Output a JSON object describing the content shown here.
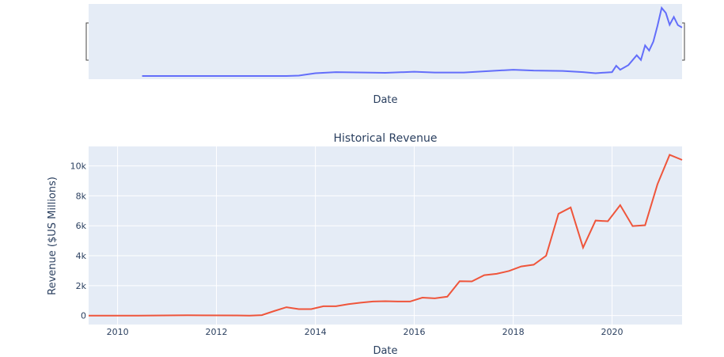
{
  "chart_data": [
    {
      "type": "line",
      "role": "range-slider-preview",
      "title": "",
      "xlabel": "Date",
      "ylabel": "",
      "x_range": [
        "2009-06-01",
        "2021-06-01"
      ],
      "colors": {
        "line": "#636efa",
        "background": "#e5ecf6"
      },
      "series": [
        {
          "points": [
            [
              "2010-07-01",
              0.2
            ],
            [
              "2011-06-01",
              0.2
            ],
            [
              "2012-06-01",
              0.2
            ],
            [
              "2013-06-01",
              0.2
            ],
            [
              "2013-09-01",
              0.3
            ],
            [
              "2014-01-01",
              0.9
            ],
            [
              "2014-06-01",
              1.2
            ],
            [
              "2015-01-01",
              1.1
            ],
            [
              "2015-06-01",
              1.0
            ],
            [
              "2016-01-01",
              1.3
            ],
            [
              "2016-06-01",
              1.1
            ],
            [
              "2017-01-01",
              1.1
            ],
            [
              "2017-06-01",
              1.4
            ],
            [
              "2018-01-01",
              1.8
            ],
            [
              "2018-06-01",
              1.6
            ],
            [
              "2019-01-01",
              1.5
            ],
            [
              "2019-06-01",
              1.2
            ],
            [
              "2019-09-01",
              0.9
            ],
            [
              "2020-01-01",
              1.2
            ],
            [
              "2020-02-01",
              2.8
            ],
            [
              "2020-03-01",
              1.8
            ],
            [
              "2020-05-01",
              3.0
            ],
            [
              "2020-07-01",
              5.5
            ],
            [
              "2020-08-01",
              4.3
            ],
            [
              "2020-09-01",
              8.0
            ],
            [
              "2020-10-01",
              6.7
            ],
            [
              "2020-11-01",
              9.0
            ],
            [
              "2020-12-01",
              13.0
            ],
            [
              "2021-01-01",
              17.6
            ],
            [
              "2021-02-01",
              16.3
            ],
            [
              "2021-03-01",
              13.3
            ],
            [
              "2021-04-01",
              15.3
            ],
            [
              "2021-05-01",
              13.2
            ],
            [
              "2021-06-01",
              12.6
            ]
          ]
        }
      ]
    },
    {
      "type": "line",
      "title": "Historical Revenue",
      "xlabel": "Date",
      "ylabel": "Revenue ($US Millions)",
      "x_range": [
        "2009-06-01",
        "2021-06-01"
      ],
      "ylim": [
        -600,
        11300
      ],
      "x_ticks": [
        "2010",
        "2012",
        "2014",
        "2016",
        "2018",
        "2020"
      ],
      "y_ticks": [
        {
          "value": 0,
          "label": "0"
        },
        {
          "value": 2000,
          "label": "2k"
        },
        {
          "value": 4000,
          "label": "4k"
        },
        {
          "value": 6000,
          "label": "6k"
        },
        {
          "value": 8000,
          "label": "8k"
        },
        {
          "value": 10000,
          "label": "10k"
        }
      ],
      "grid": true,
      "legend": "none",
      "colors": {
        "line": "#ef553b",
        "background": "#e5ecf6",
        "grid": "#ffffff"
      },
      "series": [
        {
          "points": [
            [
              "2009-06-01",
              0
            ],
            [
              "2010-06-01",
              0
            ],
            [
              "2011-06-01",
              20
            ],
            [
              "2012-06-01",
              10
            ],
            [
              "2012-09-01",
              0
            ],
            [
              "2012-12-01",
              30
            ],
            [
              "2013-03-01",
              300
            ],
            [
              "2013-06-01",
              560
            ],
            [
              "2013-09-01",
              430
            ],
            [
              "2013-12-01",
              430
            ],
            [
              "2014-03-01",
              620
            ],
            [
              "2014-06-01",
              620
            ],
            [
              "2014-09-01",
              760
            ],
            [
              "2014-12-01",
              860
            ],
            [
              "2015-03-01",
              940
            ],
            [
              "2015-06-01",
              960
            ],
            [
              "2015-09-01",
              940
            ],
            [
              "2015-12-01",
              940
            ],
            [
              "2016-03-01",
              1200
            ],
            [
              "2016-06-01",
              1150
            ],
            [
              "2016-09-01",
              1260
            ],
            [
              "2016-12-01",
              2300
            ],
            [
              "2017-03-01",
              2280
            ],
            [
              "2017-06-01",
              2700
            ],
            [
              "2017-09-01",
              2790
            ],
            [
              "2017-12-01",
              2980
            ],
            [
              "2018-03-01",
              3280
            ],
            [
              "2018-06-01",
              3400
            ],
            [
              "2018-09-01",
              4000
            ],
            [
              "2018-12-01",
              6800
            ],
            [
              "2019-03-01",
              7220
            ],
            [
              "2019-06-01",
              4540
            ],
            [
              "2019-09-01",
              6350
            ],
            [
              "2019-12-01",
              6300
            ],
            [
              "2020-03-01",
              7380
            ],
            [
              "2020-06-01",
              5980
            ],
            [
              "2020-09-01",
              6040
            ],
            [
              "2020-12-01",
              8770
            ],
            [
              "2021-03-01",
              10740
            ],
            [
              "2021-06-01",
              10400
            ]
          ]
        }
      ]
    }
  ]
}
